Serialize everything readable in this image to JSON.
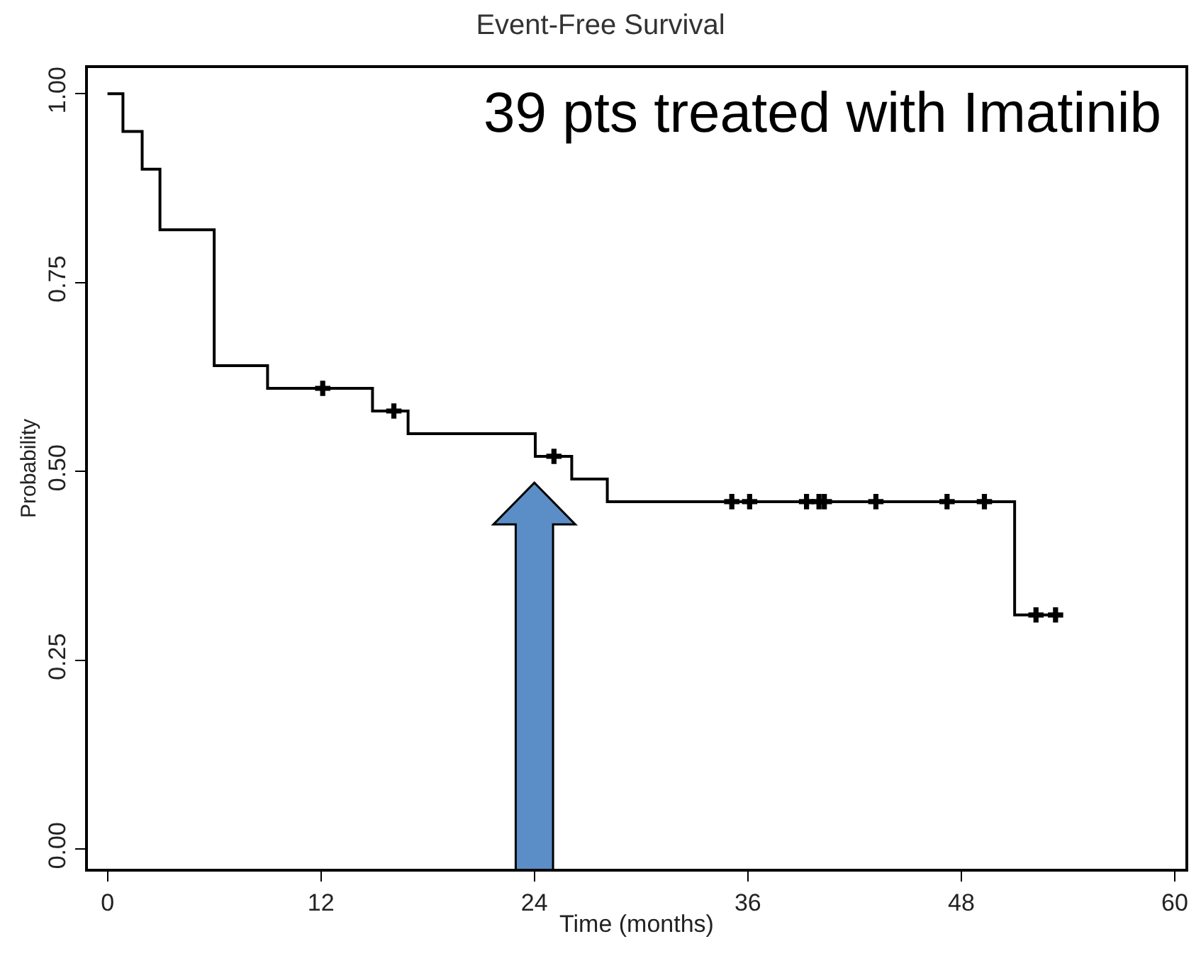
{
  "chart_data": {
    "type": "step",
    "title": "Event-Free Survival",
    "xlabel": "Time (months)",
    "ylabel": "Probability",
    "annotations": [
      "39 pts treated with Imatinib"
    ],
    "xlim": [
      -1.1,
      60.6
    ],
    "ylim": [
      -0.026,
      1.034
    ],
    "xticks": [
      0,
      12,
      24,
      36,
      48,
      60
    ],
    "yticks": [
      {
        "value": 0,
        "label": "0.00"
      },
      {
        "value": 0.25,
        "label": "0.25"
      },
      {
        "value": 0.5,
        "label": "0.50"
      },
      {
        "value": 0.75,
        "label": "0.75"
      },
      {
        "value": 1,
        "label": "1.00"
      }
    ],
    "series": [
      {
        "color": "#000000",
        "x": [
          0,
          0.87,
          1.95,
          2.95,
          6.0,
          9.0,
          14.9,
          16.9,
          24.05,
          26.1,
          28.1,
          51.0,
          53.3
        ],
        "values": [
          1.0,
          0.95,
          0.9,
          0.82,
          0.64,
          0.61,
          0.58,
          0.55,
          0.52,
          0.49,
          0.46,
          0.31,
          0.31
        ]
      },
      {
        "type": "scatter",
        "marker": "cross",
        "color": "#000000",
        "x": [
          12.1,
          16.1,
          25.1,
          35.1,
          36.1,
          39.3,
          40.0,
          40.3,
          43.2,
          47.2,
          49.3,
          52.2,
          53.3
        ],
        "values": [
          0.61,
          0.58,
          0.52,
          0.46,
          0.46,
          0.46,
          0.46,
          0.46,
          0.46,
          0.46,
          0.46,
          0.31,
          0.31
        ]
      }
    ]
  }
}
